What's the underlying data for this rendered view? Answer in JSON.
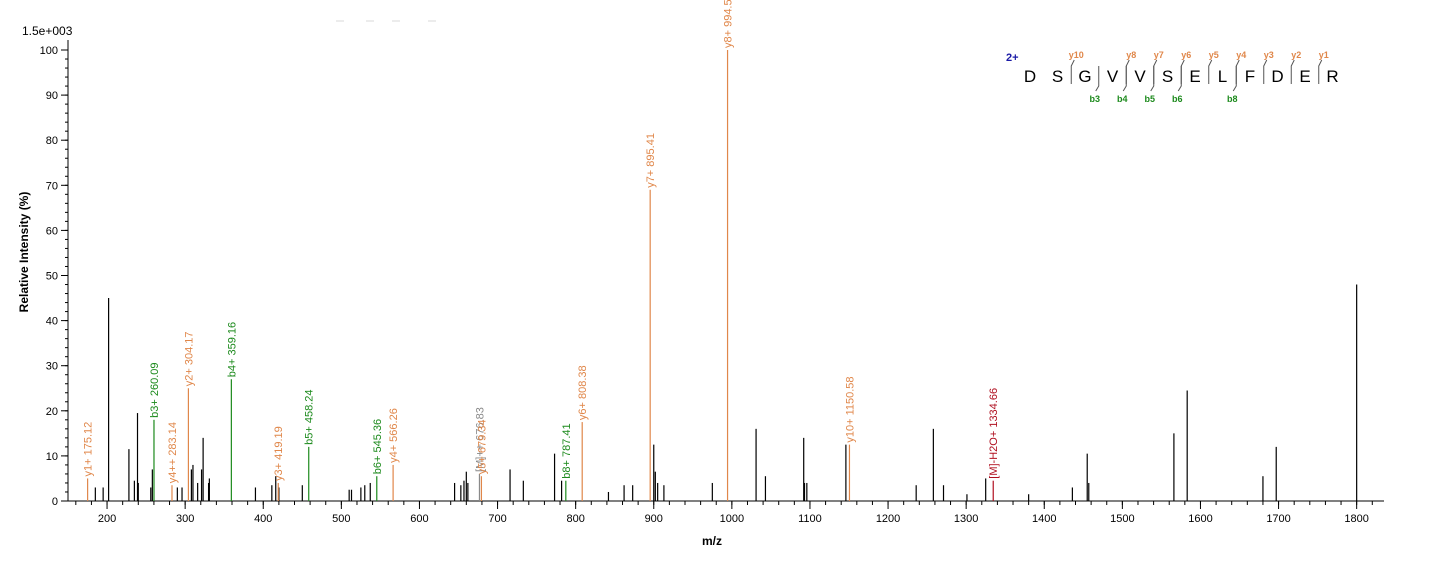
{
  "chart_data": {
    "type": "bar",
    "scale_label": "1.5e+003",
    "ylabel": "Relative   Intensity (%)",
    "xlabel": "m/z",
    "xlim": [
      150,
      1835
    ],
    "ylim": [
      0,
      100
    ],
    "x_ticks": [
      200,
      300,
      400,
      500,
      600,
      700,
      800,
      900,
      1000,
      1100,
      1200,
      1300,
      1400,
      1500,
      1600,
      1700,
      1800
    ],
    "y_ticks": [
      0,
      10,
      20,
      30,
      40,
      50,
      60,
      70,
      80,
      90,
      100
    ],
    "grid": false,
    "colors": {
      "y_ion": "#e0874a",
      "b_ion": "#1c8a1c",
      "precursor": "#8a8a8a",
      "water_loss": "#b01020",
      "unassigned": "#000000"
    },
    "annotated_peaks": [
      {
        "mz": 175.12,
        "intensity": 5,
        "label": "y1+ 175.12",
        "kind": "y_ion"
      },
      {
        "mz": 260.09,
        "intensity": 18,
        "label": "b3+ 260.09",
        "kind": "b_ion"
      },
      {
        "mz": 283.14,
        "intensity": 3.5,
        "label": "y4++ 283.14",
        "kind": "y_ion"
      },
      {
        "mz": 304.17,
        "intensity": 25,
        "label": "y2+ 304.17",
        "kind": "y_ion"
      },
      {
        "mz": 359.16,
        "intensity": 27,
        "label": "b4+ 359.16",
        "kind": "b_ion"
      },
      {
        "mz": 419.19,
        "intensity": 4,
        "label": "y3+ 419.19",
        "kind": "y_ion"
      },
      {
        "mz": 458.24,
        "intensity": 12,
        "label": "b5+ 458.24",
        "kind": "b_ion"
      },
      {
        "mz": 545.36,
        "intensity": 5.5,
        "label": "b6+ 545.36",
        "kind": "b_ion"
      },
      {
        "mz": 566.26,
        "intensity": 8,
        "label": "y4+ 566.26",
        "kind": "y_ion"
      },
      {
        "mz": 676.83,
        "intensity": 6,
        "label": "[M]++ 676.83",
        "kind": "precursor"
      },
      {
        "mz": 679.34,
        "intensity": 5.5,
        "label": "y5+ 679.34",
        "kind": "y_ion"
      },
      {
        "mz": 787.41,
        "intensity": 4.5,
        "label": "b8+ 787.41",
        "kind": "b_ion"
      },
      {
        "mz": 808.38,
        "intensity": 17.5,
        "label": "y6+ 808.38",
        "kind": "y_ion"
      },
      {
        "mz": 895.41,
        "intensity": 69,
        "label": "y7+ 895.41",
        "kind": "y_ion"
      },
      {
        "mz": 994.5,
        "intensity": 100,
        "label": "y8+ 994.50",
        "kind": "y_ion"
      },
      {
        "mz": 1150.58,
        "intensity": 12.5,
        "label": "y10+ 1150.58",
        "kind": "y_ion"
      },
      {
        "mz": 1334.66,
        "intensity": 4.5,
        "label": "[M]-H2O+ 1334.66",
        "kind": "water_loss"
      }
    ],
    "unassigned_peaks": [
      [
        185,
        3
      ],
      [
        195,
        3
      ],
      [
        202,
        45
      ],
      [
        228,
        11.5
      ],
      [
        235,
        4.5
      ],
      [
        239,
        19.5
      ],
      [
        240,
        4
      ],
      [
        256,
        3
      ],
      [
        258,
        7
      ],
      [
        290,
        3
      ],
      [
        296,
        3
      ],
      [
        308,
        7
      ],
      [
        310,
        8
      ],
      [
        316,
        4
      ],
      [
        321,
        7
      ],
      [
        323,
        14
      ],
      [
        330,
        4
      ],
      [
        331,
        5
      ],
      [
        390,
        3
      ],
      [
        411,
        3.5
      ],
      [
        416,
        5.5
      ],
      [
        420,
        3
      ],
      [
        450,
        3.5
      ],
      [
        510,
        2.5
      ],
      [
        513,
        2.5
      ],
      [
        525,
        3
      ],
      [
        530,
        3.5
      ],
      [
        537,
        4
      ],
      [
        645,
        4
      ],
      [
        653,
        3.5
      ],
      [
        657,
        4.5
      ],
      [
        660,
        6.5
      ],
      [
        662,
        4
      ],
      [
        716,
        7
      ],
      [
        733,
        4.5
      ],
      [
        773,
        10.5
      ],
      [
        782,
        4.5
      ],
      [
        842,
        2
      ],
      [
        862,
        3.5
      ],
      [
        873,
        3.5
      ],
      [
        900,
        12.5
      ],
      [
        902,
        6.5
      ],
      [
        905,
        4
      ],
      [
        913,
        3.5
      ],
      [
        975,
        4
      ],
      [
        1031,
        16
      ],
      [
        1043,
        5.5
      ],
      [
        1092,
        14
      ],
      [
        1093,
        4
      ],
      [
        1096,
        4
      ],
      [
        1146,
        12.5
      ],
      [
        1236,
        3.5
      ],
      [
        1258,
        16
      ],
      [
        1271,
        3.5
      ],
      [
        1301,
        1.5
      ],
      [
        1325,
        5
      ],
      [
        1380,
        1.5
      ],
      [
        1436,
        3
      ],
      [
        1455,
        10.5
      ],
      [
        1457,
        4
      ],
      [
        1566,
        15
      ],
      [
        1583,
        24.5
      ],
      [
        1680,
        5.5
      ],
      [
        1697,
        12
      ],
      [
        1800,
        48
      ]
    ]
  },
  "sequence_panel": {
    "charge": "2+",
    "residues": [
      "D",
      "S",
      "G",
      "V",
      "V",
      "S",
      "E",
      "L",
      "F",
      "D",
      "E",
      "R"
    ],
    "y_ions": [
      {
        "label": "y10",
        "cut_after": 2
      },
      {
        "label": "y8",
        "cut_after": 4
      },
      {
        "label": "y7",
        "cut_after": 5
      },
      {
        "label": "y6",
        "cut_after": 6
      },
      {
        "label": "y5",
        "cut_after": 7
      },
      {
        "label": "y4",
        "cut_after": 8
      },
      {
        "label": "y3",
        "cut_after": 9
      },
      {
        "label": "y2",
        "cut_after": 10
      },
      {
        "label": "y1",
        "cut_after": 11
      }
    ],
    "b_ions": [
      {
        "label": "b3",
        "cut_after": 3
      },
      {
        "label": "b4",
        "cut_after": 4
      },
      {
        "label": "b5",
        "cut_after": 5
      },
      {
        "label": "b6",
        "cut_after": 6
      },
      {
        "label": "b8",
        "cut_after": 8
      }
    ]
  }
}
